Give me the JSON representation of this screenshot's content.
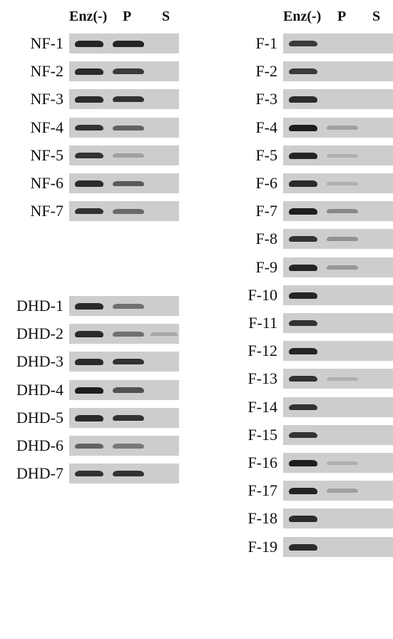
{
  "column_headers": [
    "Enz(-)",
    "P",
    "S"
  ],
  "panels": [
    {
      "name": "left",
      "groups": [
        {
          "rows": [
            {
              "label": "NF-1",
              "bands": [
                0.95,
                0.95,
                0.0
              ]
            },
            {
              "label": "NF-2",
              "bands": [
                0.9,
                0.8,
                0.0
              ]
            },
            {
              "label": "NF-3",
              "bands": [
                0.9,
                0.85,
                0.0
              ]
            },
            {
              "label": "NF-4",
              "bands": [
                0.85,
                0.55,
                0.0
              ]
            },
            {
              "label": "NF-5",
              "bands": [
                0.85,
                0.15,
                0.0
              ]
            },
            {
              "label": "NF-6",
              "bands": [
                0.9,
                0.6,
                0.0
              ]
            },
            {
              "label": "NF-7",
              "bands": [
                0.85,
                0.5,
                0.0
              ]
            }
          ]
        },
        {
          "rows": [
            {
              "label": "DHD-1",
              "bands": [
                0.9,
                0.45,
                0.0
              ]
            },
            {
              "label": "DHD-2",
              "bands": [
                0.9,
                0.45,
                0.1
              ]
            },
            {
              "label": "DHD-3",
              "bands": [
                0.9,
                0.85,
                0.0
              ]
            },
            {
              "label": "DHD-4",
              "bands": [
                1.0,
                0.65,
                0.0
              ]
            },
            {
              "label": "DHD-5",
              "bands": [
                0.9,
                0.85,
                0.0
              ]
            },
            {
              "label": "DHD-6",
              "bands": [
                0.55,
                0.4,
                0.0
              ]
            },
            {
              "label": "DHD-7",
              "bands": [
                0.85,
                0.85,
                0.0
              ]
            }
          ]
        }
      ]
    },
    {
      "name": "right",
      "groups": [
        {
          "rows": [
            {
              "label": "F-1",
              "bands": [
                0.8,
                0.0,
                0.0
              ]
            },
            {
              "label": "F-2",
              "bands": [
                0.8,
                0.0,
                0.0
              ]
            },
            {
              "label": "F-3",
              "bands": [
                0.9,
                0.0,
                0.0
              ]
            },
            {
              "label": "F-4",
              "bands": [
                1.0,
                0.15,
                0.0
              ]
            },
            {
              "label": "F-5",
              "bands": [
                0.95,
                0.05,
                0.0
              ]
            },
            {
              "label": "F-6",
              "bands": [
                0.9,
                0.05,
                0.0
              ]
            },
            {
              "label": "F-7",
              "bands": [
                1.0,
                0.3,
                0.0
              ]
            },
            {
              "label": "F-8",
              "bands": [
                0.85,
                0.25,
                0.0
              ]
            },
            {
              "label": "F-9",
              "bands": [
                0.95,
                0.2,
                0.0
              ]
            },
            {
              "label": "F-10",
              "bands": [
                0.95,
                0.0,
                0.0
              ]
            },
            {
              "label": "F-11",
              "bands": [
                0.85,
                0.0,
                0.0
              ]
            },
            {
              "label": "F-12",
              "bands": [
                0.95,
                0.0,
                0.0
              ]
            },
            {
              "label": "F-13",
              "bands": [
                0.85,
                0.05,
                0.0
              ]
            },
            {
              "label": "F-14",
              "bands": [
                0.85,
                0.0,
                0.0
              ]
            },
            {
              "label": "F-15",
              "bands": [
                0.85,
                0.0,
                0.0
              ]
            },
            {
              "label": "F-16",
              "bands": [
                1.0,
                0.05,
                0.0
              ]
            },
            {
              "label": "F-17",
              "bands": [
                0.95,
                0.15,
                0.0
              ]
            },
            {
              "label": "F-18",
              "bands": [
                0.9,
                0.0,
                0.0
              ]
            },
            {
              "label": "F-19",
              "bands": [
                0.9,
                0.0,
                0.0
              ]
            }
          ]
        }
      ]
    }
  ]
}
